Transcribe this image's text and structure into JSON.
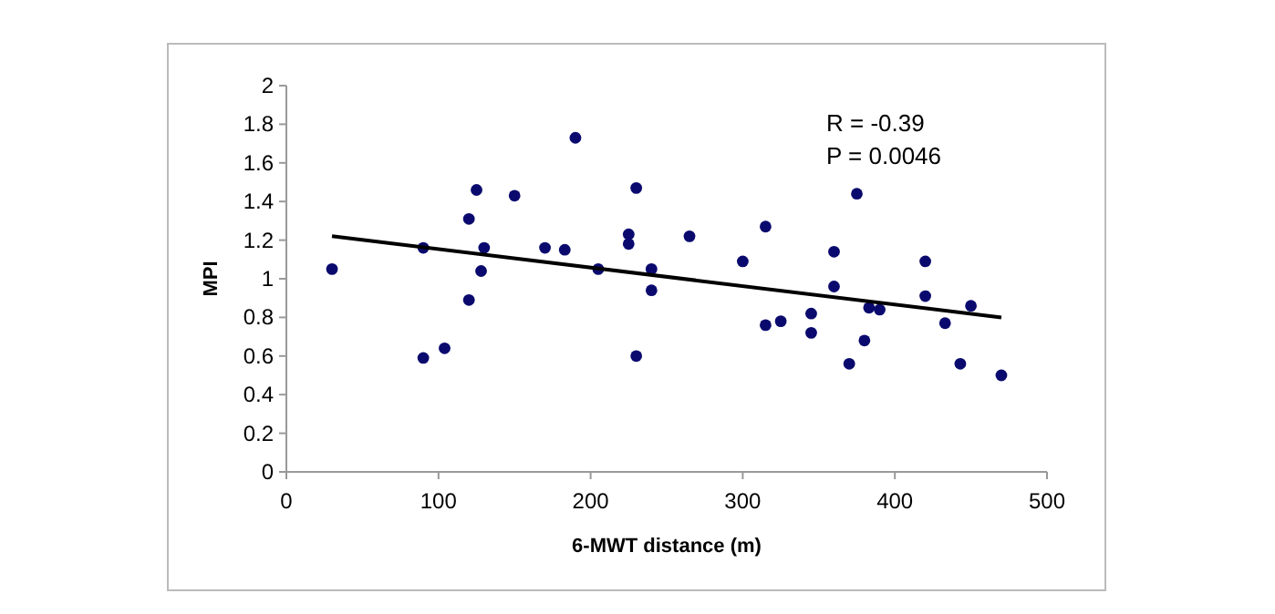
{
  "chart_data": {
    "type": "scatter",
    "xlabel": "6-MWT distance (m)",
    "ylabel": "MPI",
    "xlim": [
      0,
      500
    ],
    "xticks": [
      0,
      100,
      200,
      300,
      400,
      500
    ],
    "ylim": [
      0,
      2
    ],
    "yticks": [
      0,
      0.2,
      0.4,
      0.6,
      0.8,
      1,
      1.2,
      1.4,
      1.6,
      1.8,
      2
    ],
    "grid": false,
    "annotations": [
      "R = -0.39",
      "P = 0.0046"
    ],
    "series": [
      {
        "color": "#0a0a6e",
        "marker": "circle",
        "x": [
          30,
          90,
          90,
          104,
          120,
          120,
          125,
          128,
          130,
          150,
          170,
          183,
          190,
          205,
          225,
          225,
          230,
          230,
          240,
          240,
          265,
          300,
          315,
          315,
          325,
          345,
          345,
          360,
          360,
          370,
          375,
          380,
          383,
          390,
          420,
          420,
          433,
          443,
          450,
          470
        ],
        "values": [
          1.05,
          1.16,
          0.59,
          0.64,
          0.89,
          1.31,
          1.46,
          1.04,
          1.16,
          1.43,
          1.16,
          1.15,
          1.73,
          1.05,
          1.18,
          1.23,
          1.47,
          0.6,
          1.05,
          0.94,
          1.22,
          1.09,
          1.27,
          0.76,
          0.78,
          0.82,
          0.72,
          1.14,
          0.96,
          0.56,
          1.44,
          0.68,
          0.85,
          0.84,
          1.09,
          0.91,
          0.77,
          0.56,
          0.86,
          0.5
        ]
      },
      {
        "type": "line",
        "color": "#000000",
        "x": [
          30,
          470
        ],
        "values": [
          1.22,
          0.8
        ]
      }
    ]
  }
}
